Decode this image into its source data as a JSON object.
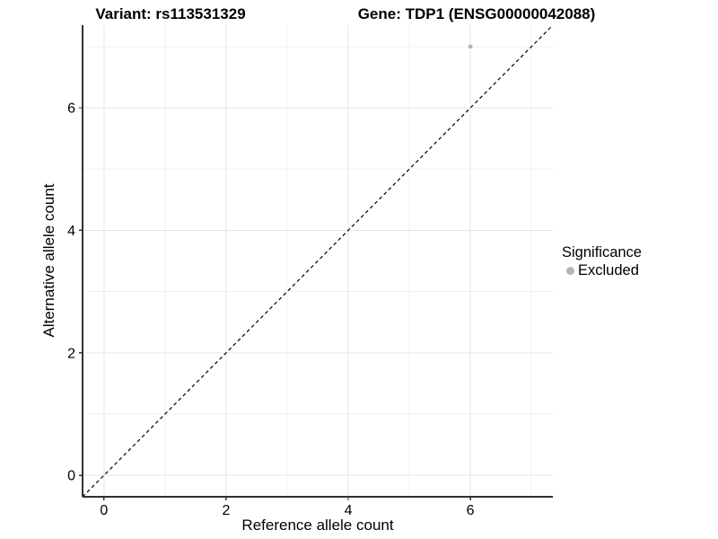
{
  "figure": {
    "title_left": "Variant: rs113531329",
    "title_right": "Gene: TDP1 (ENSG00000042088)"
  },
  "legend": {
    "title": "Significance",
    "items": [
      {
        "label": "Excluded",
        "color": "#b4b4b4",
        "marker": "circle-icon"
      }
    ]
  },
  "chart_data": {
    "type": "scatter",
    "title": "Variant: rs113531329   /   Gene: TDP1 (ENSG00000042088)",
    "xlabel": "Reference allele count",
    "ylabel": "Alternative allele count",
    "xlim": [
      -0.35,
      7.35
    ],
    "ylim": [
      -0.35,
      7.35
    ],
    "xticks": [
      0,
      2,
      4,
      6
    ],
    "yticks": [
      0,
      2,
      4,
      6
    ],
    "minor_xticks": [
      1,
      3,
      5,
      7
    ],
    "minor_yticks": [
      1,
      3,
      5,
      7
    ],
    "grid": "on",
    "legend_position": "right",
    "legend_title": "Significance",
    "series": [
      {
        "name": "Excluded",
        "color": "#b4b4b4",
        "marker": "circle",
        "points": [
          {
            "x": 6,
            "y": 7
          }
        ]
      }
    ],
    "reference_line": {
      "type": "identity y=x",
      "style": "dashed",
      "color": "#000000",
      "from": [
        -0.35,
        -0.35
      ],
      "to": [
        7.35,
        7.35
      ]
    },
    "colors": {
      "grid_major": "#e4e4e4",
      "grid_minor": "#f1f1f1",
      "axis_line": "#333333",
      "tick_mark": "#333333",
      "tick_label": "#000000",
      "point": "#b4b4b4"
    }
  }
}
